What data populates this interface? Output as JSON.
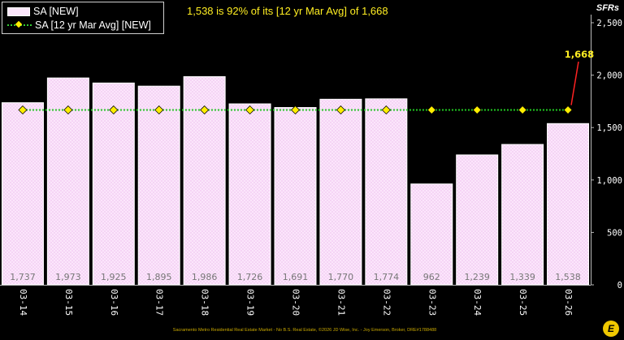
{
  "legend": {
    "bar_label": "SA [NEW]",
    "line_label": "SA [12 yr Mar Avg] [NEW]"
  },
  "headline": "1,538 is 92% of its [12 yr Mar Avg] of 1,668",
  "y_unit": "SFRs",
  "footer": "Sacramento Metro Residential Real Estate Market - No B.S. Real Estate, ©2026 JD Wise, Inc. - Joy Emerson, Broker, DRE#1788488",
  "logo_glyph": "E",
  "colors": {
    "bar_fill": "#fbe6fb",
    "bar_edge": "#ffffff",
    "avg_line": "#22cc22",
    "avg_marker": "#ffee00",
    "callout": "#ff2222",
    "callout_text": "#ffee22",
    "background": "#000000"
  },
  "chart_data": {
    "type": "bar",
    "categories": [
      "03-14",
      "03-15",
      "03-16",
      "03-17",
      "03-18",
      "03-19",
      "03-20",
      "03-21",
      "03-22",
      "03-23",
      "03-24",
      "03-25",
      "03-26"
    ],
    "series": [
      {
        "name": "SA [NEW]",
        "type": "bar",
        "values": [
          1737,
          1973,
          1925,
          1895,
          1986,
          1726,
          1691,
          1770,
          1774,
          962,
          1239,
          1339,
          1538
        ],
        "labels": [
          "1,737",
          "1,973",
          "1,925",
          "1,895",
          "1,986",
          "1,726",
          "1,691",
          "1,770",
          "1,774",
          "962",
          "1,239",
          "1,339",
          "1,538"
        ]
      },
      {
        "name": "SA [12 yr Mar Avg] [NEW]",
        "type": "line",
        "values": [
          1668,
          1668,
          1668,
          1668,
          1668,
          1668,
          1668,
          1668,
          1668,
          1668,
          1668,
          1668,
          1668
        ]
      }
    ],
    "y_ticks": [
      0,
      500,
      1000,
      1500,
      2000,
      2500
    ],
    "y_tick_labels": [
      "0",
      "500",
      "1,000",
      "1,500",
      "2,000",
      "2,500"
    ],
    "ylim": [
      0,
      2500
    ],
    "grid": false,
    "legend_position": "top-left",
    "callout": {
      "category": "03-26",
      "value": 1668,
      "label": "1,668"
    }
  }
}
